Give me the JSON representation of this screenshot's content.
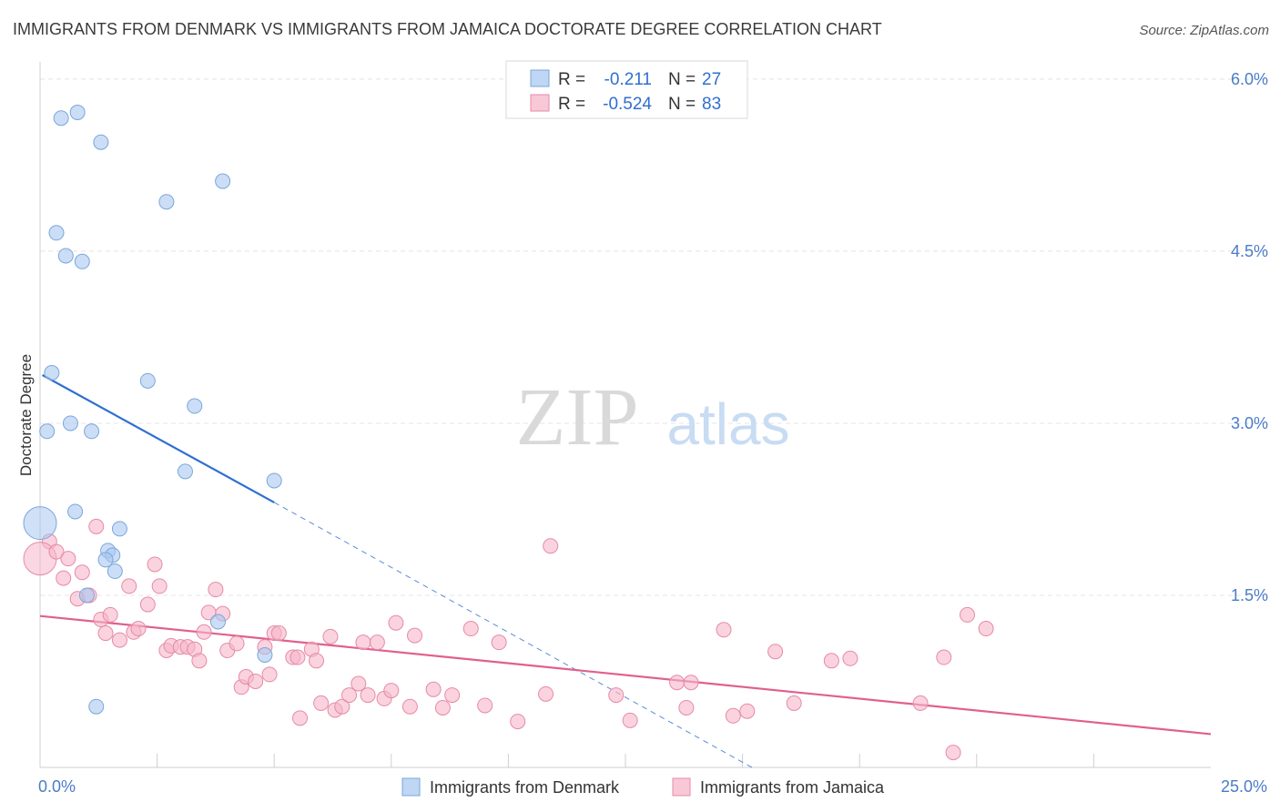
{
  "title": "IMMIGRANTS FROM DENMARK VS IMMIGRANTS FROM JAMAICA DOCTORATE DEGREE CORRELATION CHART",
  "source": "Source: ZipAtlas.com",
  "watermark": {
    "zip": "ZIP",
    "atlas": "atlas"
  },
  "legend_box": {
    "rows": [
      {
        "r_label": "R =",
        "r_value": "-0.211",
        "n_label": "N =",
        "n_value": "27"
      },
      {
        "r_label": "R =",
        "r_value": "-0.524",
        "n_label": "N =",
        "n_value": "83"
      }
    ]
  },
  "colors": {
    "denmark_fill": "#a9c8f0",
    "denmark_stroke": "#7aa6dc",
    "denmark_line": "#2f6fd0",
    "jamaica_fill": "#f6b6ca",
    "jamaica_stroke": "#e68aa8",
    "jamaica_line": "#e0608e",
    "tick_label": "#4a7cc9",
    "value_text": "#2f6fd0",
    "grid": "#e4e4e4"
  },
  "chart_data": {
    "type": "scatter",
    "title": "IMMIGRANTS FROM DENMARK VS IMMIGRANTS FROM JAMAICA DOCTORATE DEGREE CORRELATION CHART",
    "xlabel": "",
    "ylabel": "Doctorate Degree",
    "xlim": [
      0,
      25
    ],
    "ylim": [
      0,
      6.15
    ],
    "x_tick_labels": [
      {
        "value": 0,
        "label": "0.0%"
      },
      {
        "value": 25,
        "label": "25.0%"
      }
    ],
    "y_tick_labels": [
      {
        "value": 1.5,
        "label": "1.5%"
      },
      {
        "value": 3.0,
        "label": "3.0%"
      },
      {
        "value": 4.5,
        "label": "4.5%"
      },
      {
        "value": 6.0,
        "label": "6.0%"
      }
    ],
    "x_minor_ticks": [
      2.5,
      5,
      7.5,
      10,
      12.5,
      15,
      17.5,
      20,
      22.5
    ],
    "grid": true,
    "legend_position": "bottom",
    "series": [
      {
        "name": "Immigrants from Denmark",
        "r": -0.211,
        "n": 27,
        "points": [
          {
            "x": 0.45,
            "y": 5.66
          },
          {
            "x": 0.8,
            "y": 5.71
          },
          {
            "x": 1.3,
            "y": 5.45
          },
          {
            "x": 3.9,
            "y": 5.11
          },
          {
            "x": 2.7,
            "y": 4.93
          },
          {
            "x": 0.35,
            "y": 4.66
          },
          {
            "x": 0.55,
            "y": 4.46
          },
          {
            "x": 0.9,
            "y": 4.41
          },
          {
            "x": 0.25,
            "y": 3.44
          },
          {
            "x": 2.3,
            "y": 3.37
          },
          {
            "x": 3.3,
            "y": 3.15
          },
          {
            "x": 0.65,
            "y": 3.0
          },
          {
            "x": 1.1,
            "y": 2.93
          },
          {
            "x": 0.15,
            "y": 2.93
          },
          {
            "x": 3.1,
            "y": 2.58
          },
          {
            "x": 5.0,
            "y": 2.5
          },
          {
            "x": 0.75,
            "y": 2.23
          },
          {
            "x": 0.0,
            "y": 2.13,
            "big": true
          },
          {
            "x": 1.7,
            "y": 2.08
          },
          {
            "x": 1.45,
            "y": 1.89
          },
          {
            "x": 1.55,
            "y": 1.85
          },
          {
            "x": 1.4,
            "y": 1.81
          },
          {
            "x": 1.6,
            "y": 1.71
          },
          {
            "x": 1.0,
            "y": 1.5
          },
          {
            "x": 3.8,
            "y": 1.27
          },
          {
            "x": 4.8,
            "y": 0.98
          },
          {
            "x": 1.2,
            "y": 0.53
          }
        ],
        "trend": {
          "solid_from": [
            0.05,
            3.42
          ],
          "solid_to": [
            5.0,
            2.31
          ],
          "dashed_to": [
            15.2,
            0.0
          ]
        }
      },
      {
        "name": "Immigrants from Jamaica",
        "r": -0.524,
        "n": 83,
        "points": [
          {
            "x": 0.2,
            "y": 1.97
          },
          {
            "x": 0.0,
            "y": 1.82,
            "big": true
          },
          {
            "x": 0.35,
            "y": 1.88
          },
          {
            "x": 0.6,
            "y": 1.82
          },
          {
            "x": 0.5,
            "y": 1.65
          },
          {
            "x": 0.9,
            "y": 1.7
          },
          {
            "x": 0.8,
            "y": 1.47
          },
          {
            "x": 1.05,
            "y": 1.5
          },
          {
            "x": 1.2,
            "y": 2.1
          },
          {
            "x": 1.3,
            "y": 1.29
          },
          {
            "x": 1.4,
            "y": 1.17
          },
          {
            "x": 1.5,
            "y": 1.33
          },
          {
            "x": 1.7,
            "y": 1.11
          },
          {
            "x": 1.9,
            "y": 1.58
          },
          {
            "x": 2.0,
            "y": 1.18
          },
          {
            "x": 2.1,
            "y": 1.21
          },
          {
            "x": 2.3,
            "y": 1.42
          },
          {
            "x": 2.45,
            "y": 1.77
          },
          {
            "x": 2.55,
            "y": 1.58
          },
          {
            "x": 2.7,
            "y": 1.02
          },
          {
            "x": 2.8,
            "y": 1.06
          },
          {
            "x": 3.0,
            "y": 1.05
          },
          {
            "x": 3.15,
            "y": 1.05
          },
          {
            "x": 3.3,
            "y": 1.03
          },
          {
            "x": 3.4,
            "y": 0.93
          },
          {
            "x": 3.5,
            "y": 1.18
          },
          {
            "x": 3.6,
            "y": 1.35
          },
          {
            "x": 3.75,
            "y": 1.55
          },
          {
            "x": 3.9,
            "y": 1.34
          },
          {
            "x": 4.0,
            "y": 1.02
          },
          {
            "x": 4.2,
            "y": 1.08
          },
          {
            "x": 4.3,
            "y": 0.7
          },
          {
            "x": 4.4,
            "y": 0.79
          },
          {
            "x": 4.6,
            "y": 0.75
          },
          {
            "x": 4.8,
            "y": 1.05
          },
          {
            "x": 4.9,
            "y": 0.81
          },
          {
            "x": 5.0,
            "y": 1.17
          },
          {
            "x": 5.1,
            "y": 1.17
          },
          {
            "x": 5.4,
            "y": 0.96
          },
          {
            "x": 5.5,
            "y": 0.96
          },
          {
            "x": 5.55,
            "y": 0.43
          },
          {
            "x": 5.8,
            "y": 1.03
          },
          {
            "x": 5.9,
            "y": 0.93
          },
          {
            "x": 6.0,
            "y": 0.56
          },
          {
            "x": 6.2,
            "y": 1.14
          },
          {
            "x": 6.3,
            "y": 0.5
          },
          {
            "x": 6.45,
            "y": 0.53
          },
          {
            "x": 6.6,
            "y": 0.63
          },
          {
            "x": 6.8,
            "y": 0.73
          },
          {
            "x": 6.9,
            "y": 1.09
          },
          {
            "x": 7.0,
            "y": 0.63
          },
          {
            "x": 7.2,
            "y": 1.09
          },
          {
            "x": 7.35,
            "y": 0.6
          },
          {
            "x": 7.5,
            "y": 0.67
          },
          {
            "x": 7.6,
            "y": 1.26
          },
          {
            "x": 7.9,
            "y": 0.53
          },
          {
            "x": 8.0,
            "y": 1.15
          },
          {
            "x": 8.4,
            "y": 0.68
          },
          {
            "x": 8.6,
            "y": 0.52
          },
          {
            "x": 8.8,
            "y": 0.63
          },
          {
            "x": 9.2,
            "y": 1.21
          },
          {
            "x": 9.5,
            "y": 0.54
          },
          {
            "x": 9.8,
            "y": 1.09
          },
          {
            "x": 10.2,
            "y": 0.4
          },
          {
            "x": 10.8,
            "y": 0.64
          },
          {
            "x": 10.9,
            "y": 1.93
          },
          {
            "x": 12.3,
            "y": 0.63
          },
          {
            "x": 12.6,
            "y": 0.41
          },
          {
            "x": 13.6,
            "y": 0.74
          },
          {
            "x": 13.8,
            "y": 0.52
          },
          {
            "x": 13.9,
            "y": 0.74
          },
          {
            "x": 14.6,
            "y": 1.2
          },
          {
            "x": 14.8,
            "y": 0.45
          },
          {
            "x": 15.1,
            "y": 0.49
          },
          {
            "x": 15.7,
            "y": 1.01
          },
          {
            "x": 16.1,
            "y": 0.56
          },
          {
            "x": 16.9,
            "y": 0.93
          },
          {
            "x": 17.3,
            "y": 0.95
          },
          {
            "x": 18.8,
            "y": 0.56
          },
          {
            "x": 19.3,
            "y": 0.96
          },
          {
            "x": 19.5,
            "y": 0.13
          },
          {
            "x": 19.8,
            "y": 1.33
          },
          {
            "x": 20.2,
            "y": 1.21
          }
        ],
        "trend": {
          "solid_from": [
            0.0,
            1.32
          ],
          "solid_to": [
            25.0,
            0.29
          ]
        }
      }
    ]
  }
}
